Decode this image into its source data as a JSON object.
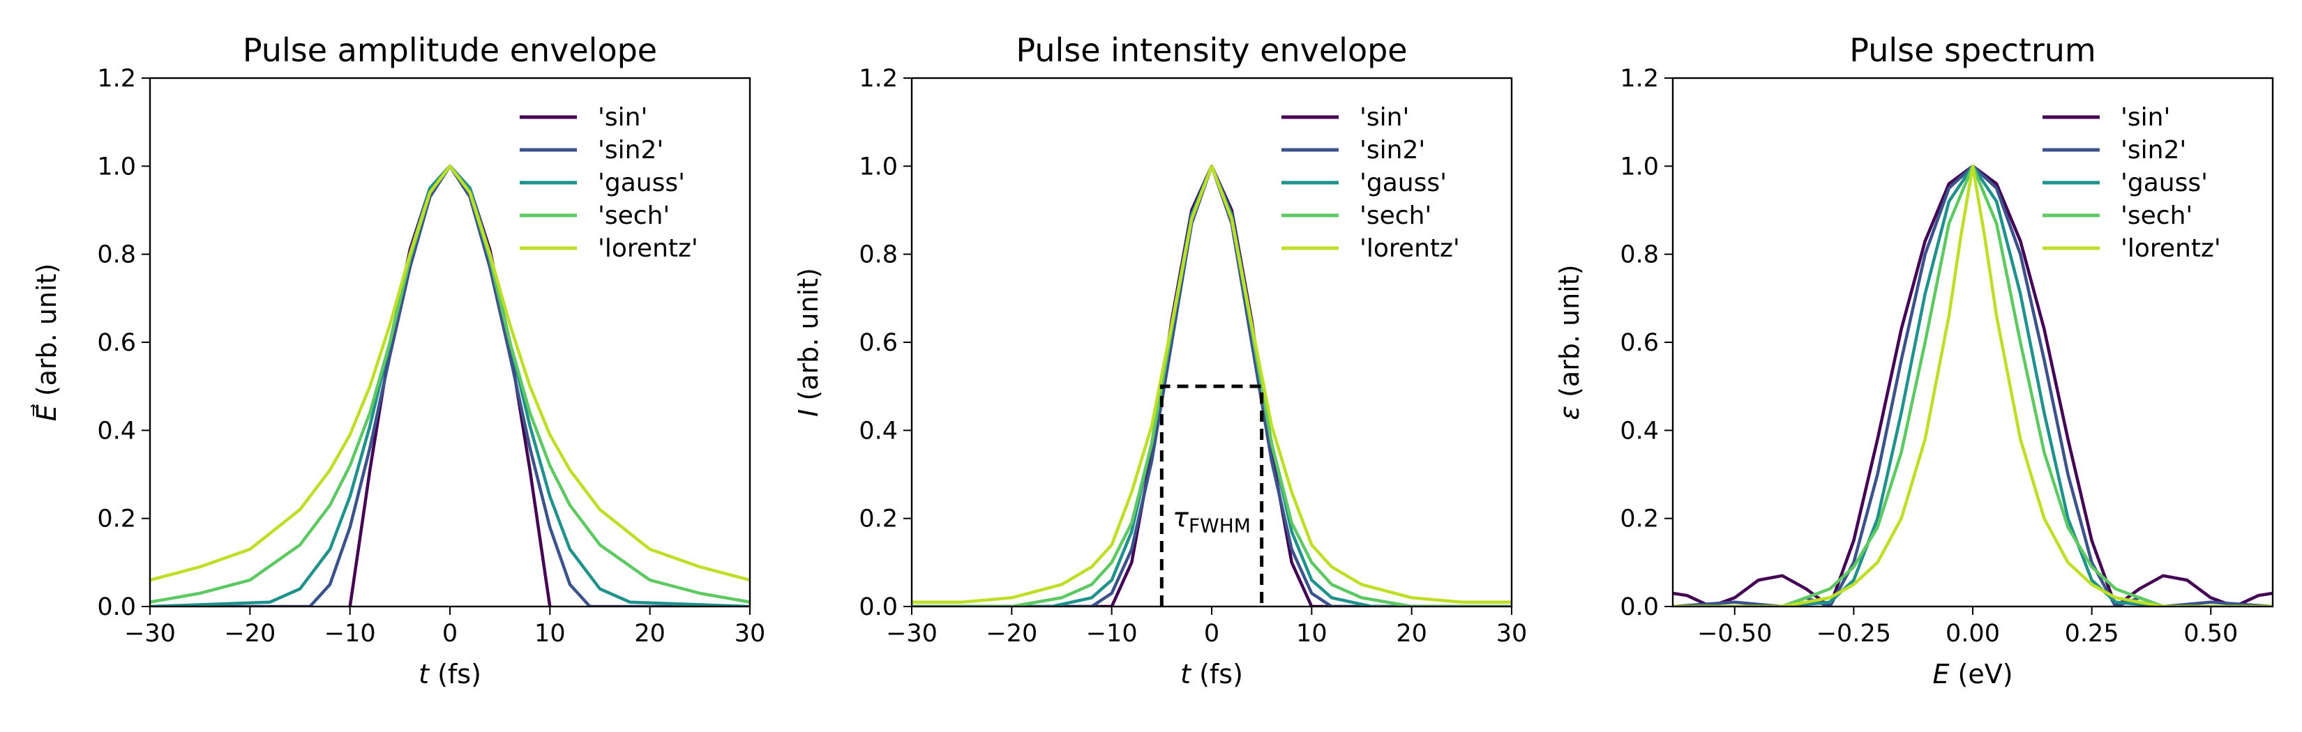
{
  "chart_data": [
    {
      "type": "line",
      "title": "Pulse amplitude envelope",
      "xlabel_symbol": "t",
      "xlabel_unit": " (fs)",
      "ylabel_symbol": "E⃗",
      "ylabel_unit": " (arb. unit)",
      "xlim": [
        -30,
        30
      ],
      "ylim": [
        0,
        1.2
      ],
      "xticks": [
        -30,
        -20,
        -10,
        0,
        10,
        20,
        30
      ],
      "xtick_labels": [
        "−30",
        "−20",
        "−10",
        "0",
        "10",
        "20",
        "30"
      ],
      "yticks": [
        0,
        0.2,
        0.4,
        0.6,
        0.8,
        1.0,
        1.2
      ],
      "ytick_labels": [
        "0.0",
        "0.2",
        "0.4",
        "0.6",
        "0.8",
        "1.0",
        "1.2"
      ],
      "legend_position": "top-right",
      "series": [
        {
          "name": "'sin'",
          "color": "#440154",
          "x": [
            -10,
            -8,
            -6,
            -4,
            -2,
            0,
            2,
            4,
            6,
            8,
            10
          ],
          "y": [
            0.0,
            0.31,
            0.59,
            0.81,
            0.95,
            1.0,
            0.95,
            0.81,
            0.59,
            0.31,
            0.0
          ]
        },
        {
          "name": "'sin2'",
          "color": "#3b528b",
          "x": [
            -24,
            -14,
            -12,
            -10,
            -8,
            -6,
            -4,
            -2,
            0,
            2,
            4,
            6,
            8,
            10,
            12,
            14,
            24
          ],
          "y": [
            0.0,
            0.0,
            0.05,
            0.18,
            0.36,
            0.57,
            0.77,
            0.93,
            1.0,
            0.93,
            0.77,
            0.57,
            0.36,
            0.18,
            0.05,
            0.0,
            0.0
          ]
        },
        {
          "name": "'gauss'",
          "color": "#21918c",
          "x": [
            -30,
            -18,
            -15,
            -12,
            -10,
            -8,
            -6,
            -4,
            -2,
            0,
            2,
            4,
            6,
            8,
            10,
            12,
            15,
            18,
            30
          ],
          "y": [
            0.0,
            0.01,
            0.04,
            0.13,
            0.25,
            0.41,
            0.6,
            0.8,
            0.95,
            1.0,
            0.95,
            0.8,
            0.6,
            0.41,
            0.25,
            0.13,
            0.04,
            0.01,
            0.0
          ]
        },
        {
          "name": "'sech'",
          "color": "#5ec962",
          "x": [
            -30,
            -25,
            -20,
            -15,
            -12,
            -10,
            -8,
            -6,
            -4,
            -2,
            0,
            2,
            4,
            6,
            8,
            10,
            12,
            15,
            20,
            25,
            30
          ],
          "y": [
            0.01,
            0.03,
            0.06,
            0.14,
            0.23,
            0.32,
            0.44,
            0.6,
            0.79,
            0.94,
            1.0,
            0.94,
            0.79,
            0.6,
            0.44,
            0.32,
            0.23,
            0.14,
            0.06,
            0.03,
            0.01
          ]
        },
        {
          "name": "'lorentz'",
          "color": "#bddf26",
          "x": [
            -30,
            -25,
            -20,
            -15,
            -12,
            -10,
            -8,
            -6,
            -4,
            -2,
            0,
            2,
            4,
            6,
            8,
            10,
            12,
            15,
            20,
            25,
            30
          ],
          "y": [
            0.06,
            0.09,
            0.13,
            0.22,
            0.31,
            0.39,
            0.5,
            0.64,
            0.8,
            0.94,
            1.0,
            0.94,
            0.8,
            0.64,
            0.5,
            0.39,
            0.31,
            0.22,
            0.13,
            0.09,
            0.06
          ]
        }
      ]
    },
    {
      "type": "line",
      "title": "Pulse intensity envelope",
      "xlabel_symbol": "t",
      "xlabel_unit": " (fs)",
      "ylabel_symbol": "I",
      "ylabel_unit": " (arb. unit)",
      "xlim": [
        -30,
        30
      ],
      "ylim": [
        0,
        1.2
      ],
      "xticks": [
        -30,
        -20,
        -10,
        0,
        10,
        20,
        30
      ],
      "xtick_labels": [
        "−30",
        "−20",
        "−10",
        "0",
        "10",
        "20",
        "30"
      ],
      "yticks": [
        0,
        0.2,
        0.4,
        0.6,
        0.8,
        1.0,
        1.2
      ],
      "ytick_labels": [
        "0.0",
        "0.2",
        "0.4",
        "0.6",
        "0.8",
        "1.0",
        "1.2"
      ],
      "legend_position": "top-right",
      "annotation": {
        "symbol": "τ",
        "subscript": "FWHM",
        "x_left": -5,
        "x_right": 5,
        "y_level": 0.5
      },
      "series": [
        {
          "name": "'sin'",
          "color": "#440154",
          "x": [
            -30,
            -10,
            -8,
            -6,
            -4,
            -2,
            0,
            2,
            4,
            6,
            8,
            10,
            30
          ],
          "y": [
            0.0,
            0.0,
            0.1,
            0.35,
            0.65,
            0.9,
            1.0,
            0.9,
            0.65,
            0.35,
            0.1,
            0.0,
            0.0
          ]
        },
        {
          "name": "'sin2'",
          "color": "#3b528b",
          "x": [
            -30,
            -14,
            -12,
            -10,
            -8,
            -6,
            -4,
            -2,
            0,
            2,
            4,
            6,
            8,
            10,
            12,
            14,
            30
          ],
          "y": [
            0.0,
            0.0,
            0.0,
            0.03,
            0.13,
            0.33,
            0.6,
            0.87,
            1.0,
            0.87,
            0.6,
            0.33,
            0.13,
            0.03,
            0.0,
            0.0,
            0.0
          ]
        },
        {
          "name": "'gauss'",
          "color": "#21918c",
          "x": [
            -30,
            -16,
            -12,
            -10,
            -8,
            -6,
            -4,
            -2,
            0,
            2,
            4,
            6,
            8,
            10,
            12,
            16,
            30
          ],
          "y": [
            0.0,
            0.0,
            0.02,
            0.06,
            0.17,
            0.37,
            0.64,
            0.89,
            1.0,
            0.89,
            0.64,
            0.37,
            0.17,
            0.06,
            0.02,
            0.0,
            0.0
          ]
        },
        {
          "name": "'sech'",
          "color": "#5ec962",
          "x": [
            -30,
            -20,
            -15,
            -12,
            -10,
            -8,
            -6,
            -4,
            -2,
            0,
            2,
            4,
            6,
            8,
            10,
            12,
            15,
            20,
            30
          ],
          "y": [
            0.0,
            0.0,
            0.02,
            0.05,
            0.1,
            0.19,
            0.37,
            0.63,
            0.88,
            1.0,
            0.88,
            0.63,
            0.37,
            0.19,
            0.1,
            0.05,
            0.02,
            0.0,
            0.0
          ]
        },
        {
          "name": "'lorentz'",
          "color": "#bddf26",
          "x": [
            -30,
            -25,
            -20,
            -15,
            -12,
            -10,
            -8,
            -6,
            -4,
            -2,
            0,
            2,
            4,
            6,
            8,
            10,
            12,
            15,
            20,
            25,
            30
          ],
          "y": [
            0.01,
            0.01,
            0.02,
            0.05,
            0.09,
            0.14,
            0.26,
            0.41,
            0.64,
            0.88,
            1.0,
            0.88,
            0.64,
            0.41,
            0.26,
            0.14,
            0.09,
            0.05,
            0.02,
            0.01,
            0.01
          ]
        }
      ]
    },
    {
      "type": "line",
      "title": "Pulse spectrum",
      "xlabel_symbol": "E",
      "xlabel_unit": " (eV)",
      "ylabel_symbol": "ε",
      "ylabel_unit": " (arb. unit)",
      "xlim": [
        -0.63,
        0.63
      ],
      "ylim": [
        0,
        1.2
      ],
      "xticks": [
        -0.5,
        -0.25,
        0,
        0.25,
        0.5
      ],
      "xtick_labels": [
        "−0.50",
        "−0.25",
        "0.00",
        "0.25",
        "0.50"
      ],
      "yticks": [
        0,
        0.2,
        0.4,
        0.6,
        0.8,
        1.0,
        1.2
      ],
      "ytick_labels": [
        "0.0",
        "0.2",
        "0.4",
        "0.6",
        "0.8",
        "1.0",
        "1.2"
      ],
      "legend_position": "top-right",
      "series": [
        {
          "name": "'sin'",
          "color": "#440154",
          "x": [
            -0.63,
            -0.6,
            -0.55,
            -0.5,
            -0.45,
            -0.4,
            -0.35,
            -0.3,
            -0.25,
            -0.2,
            -0.15,
            -0.1,
            -0.05,
            0,
            0.05,
            0.1,
            0.15,
            0.2,
            0.25,
            0.3,
            0.35,
            0.4,
            0.45,
            0.5,
            0.55,
            0.6,
            0.63
          ],
          "y": [
            0.03,
            0.025,
            0.0,
            0.02,
            0.06,
            0.07,
            0.04,
            0.0,
            0.15,
            0.38,
            0.63,
            0.83,
            0.96,
            1.0,
            0.96,
            0.83,
            0.63,
            0.38,
            0.15,
            0.0,
            0.04,
            0.07,
            0.06,
            0.02,
            0.0,
            0.025,
            0.03
          ]
        },
        {
          "name": "'sin2'",
          "color": "#3b528b",
          "x": [
            -0.63,
            -0.5,
            -0.4,
            -0.35,
            -0.3,
            -0.25,
            -0.2,
            -0.15,
            -0.1,
            -0.05,
            0,
            0.05,
            0.1,
            0.15,
            0.2,
            0.25,
            0.3,
            0.35,
            0.4,
            0.5,
            0.63
          ],
          "y": [
            0.0,
            0.01,
            0.0,
            0.02,
            0.0,
            0.1,
            0.3,
            0.56,
            0.8,
            0.95,
            1.0,
            0.95,
            0.8,
            0.56,
            0.3,
            0.1,
            0.0,
            0.02,
            0.0,
            0.01,
            0.0
          ]
        },
        {
          "name": "'gauss'",
          "color": "#21918c",
          "x": [
            -0.63,
            -0.4,
            -0.3,
            -0.25,
            -0.2,
            -0.15,
            -0.1,
            -0.05,
            0,
            0.05,
            0.1,
            0.15,
            0.2,
            0.25,
            0.3,
            0.4,
            0.63
          ],
          "y": [
            0.0,
            0.0,
            0.01,
            0.06,
            0.2,
            0.44,
            0.71,
            0.92,
            1.0,
            0.92,
            0.71,
            0.44,
            0.2,
            0.06,
            0.01,
            0.0,
            0.0
          ]
        },
        {
          "name": "'sech'",
          "color": "#5ec962",
          "x": [
            -0.63,
            -0.5,
            -0.4,
            -0.3,
            -0.25,
            -0.2,
            -0.15,
            -0.1,
            -0.05,
            0,
            0.05,
            0.1,
            0.15,
            0.2,
            0.25,
            0.3,
            0.4,
            0.5,
            0.63
          ],
          "y": [
            0.0,
            0.0,
            0.0,
            0.04,
            0.09,
            0.18,
            0.35,
            0.6,
            0.87,
            1.0,
            0.87,
            0.6,
            0.35,
            0.18,
            0.09,
            0.04,
            0.0,
            0.0,
            0.0
          ]
        },
        {
          "name": "'lorentz'",
          "color": "#bddf26",
          "x": [
            -0.63,
            -0.5,
            -0.4,
            -0.3,
            -0.25,
            -0.2,
            -0.15,
            -0.1,
            -0.05,
            -0.025,
            0,
            0.025,
            0.05,
            0.1,
            0.15,
            0.2,
            0.25,
            0.3,
            0.4,
            0.5,
            0.63
          ],
          "y": [
            0.0,
            0.0,
            0.0,
            0.02,
            0.05,
            0.1,
            0.2,
            0.38,
            0.66,
            0.84,
            1.0,
            0.84,
            0.66,
            0.38,
            0.2,
            0.1,
            0.05,
            0.02,
            0.0,
            0.0,
            0.0
          ]
        }
      ]
    }
  ]
}
